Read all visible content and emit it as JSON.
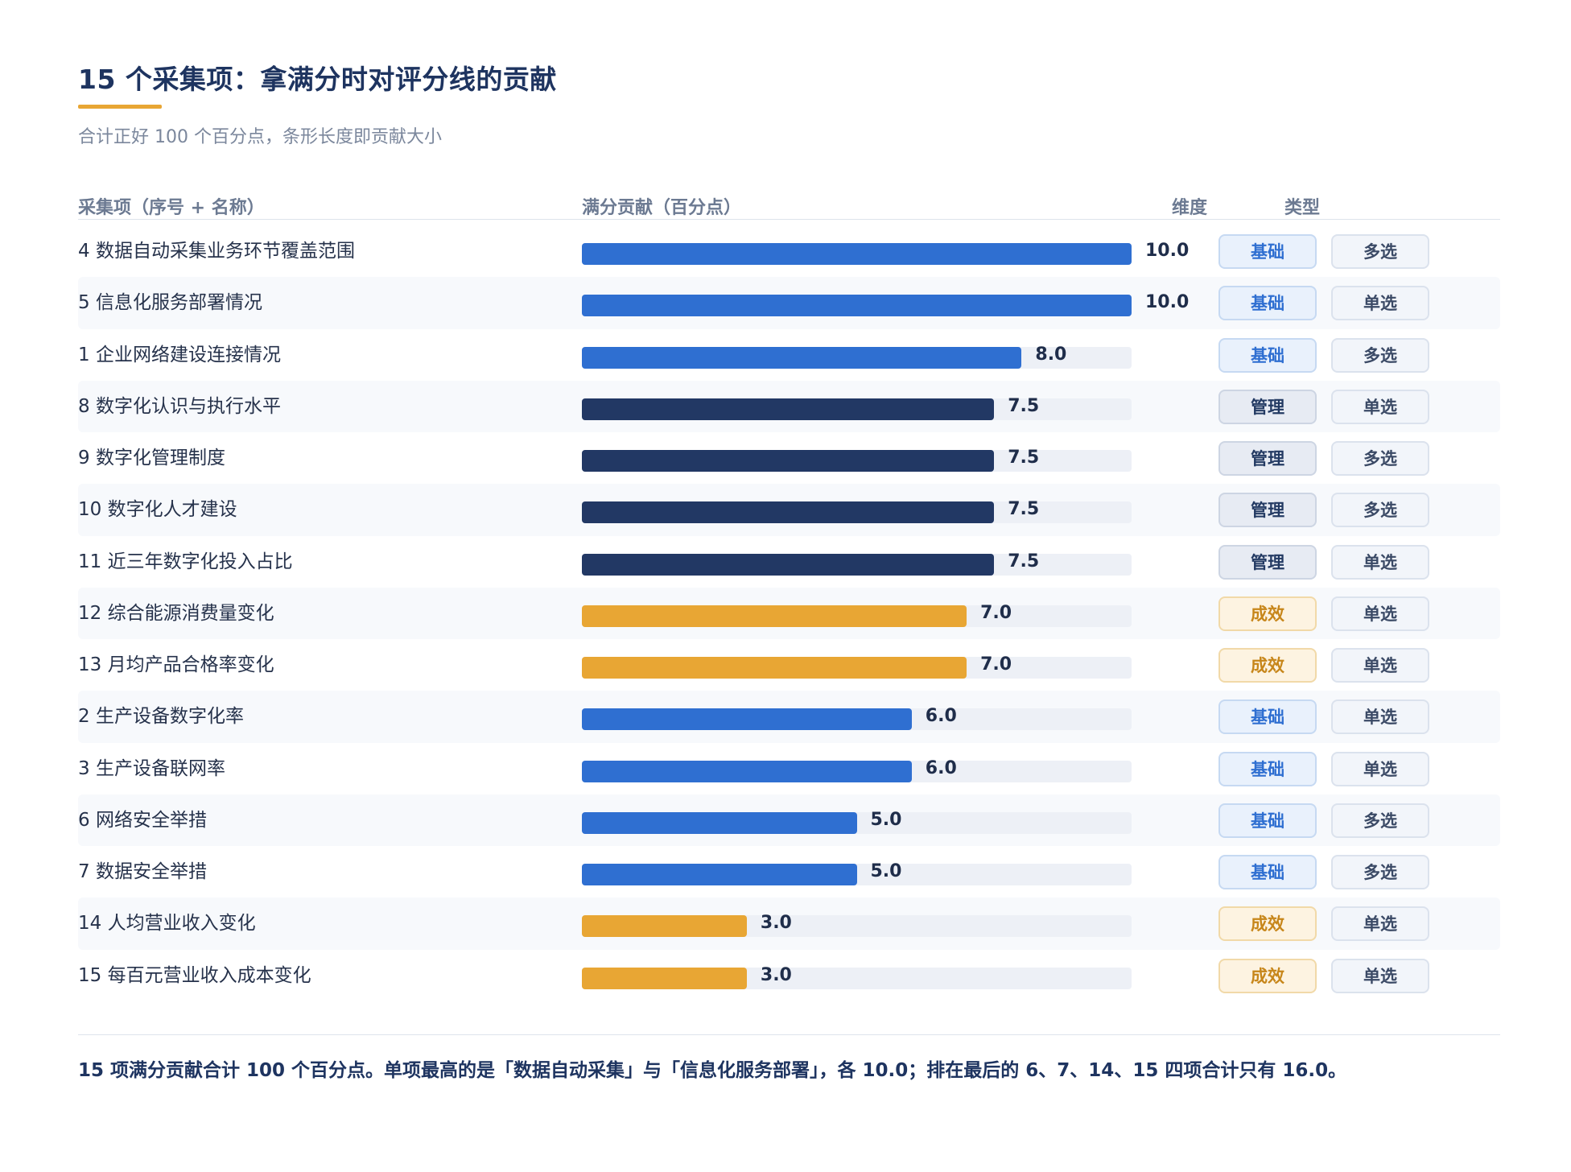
{
  "title": "15 个采集项：拿满分时对评分线的贡献",
  "subtitle": "合计正好 100 个百分点，条形长度即贡献大小",
  "columns": {
    "item": "采集项（序号 + 名称）",
    "contribution": "满分贡献（百分点）",
    "dimension": "维度",
    "type": "类型"
  },
  "colors": {
    "基础": "#2f6fd1",
    "管理": "#223864",
    "成效": "#e8a634",
    "track": "#edf0f6"
  },
  "chart_data": {
    "type": "bar",
    "orientation": "horizontal",
    "xlabel": "满分贡献（百分点）",
    "xlim": [
      0,
      10
    ],
    "categories": [
      "4 数据自动采集业务环节覆盖范围",
      "5 信息化服务部署情况",
      "1 企业网络建设连接情况",
      "8 数字化认识与执行水平",
      "9 数字化管理制度",
      "10 数字化人才建设",
      "11 近三年数字化投入占比",
      "12 综合能源消费量变化",
      "13 月均产品合格率变化",
      "2 生产设备数字化率",
      "3 生产设备联网率",
      "6 网络安全举措",
      "7 数据安全举措",
      "14 人均营业收入变化",
      "15 每百元营业收入成本变化"
    ],
    "values": [
      10.0,
      10.0,
      8.0,
      7.5,
      7.5,
      7.5,
      7.5,
      7.0,
      7.0,
      6.0,
      6.0,
      5.0,
      5.0,
      3.0,
      3.0
    ],
    "value_labels": [
      "10.0",
      "10.0",
      "8.0",
      "7.5",
      "7.5",
      "7.5",
      "7.5",
      "7.0",
      "7.0",
      "6.0",
      "6.0",
      "5.0",
      "5.0",
      "3.0",
      "3.0"
    ],
    "dimension": [
      "基础",
      "基础",
      "基础",
      "管理",
      "管理",
      "管理",
      "管理",
      "成效",
      "成效",
      "基础",
      "基础",
      "基础",
      "基础",
      "成效",
      "成效"
    ],
    "item_type": [
      "多选",
      "单选",
      "多选",
      "单选",
      "多选",
      "多选",
      "单选",
      "单选",
      "单选",
      "单选",
      "单选",
      "多选",
      "多选",
      "单选",
      "单选"
    ]
  },
  "note": "15 项满分贡献合计 100 个百分点。单项最高的是「数据自动采集」与「信息化服务部署」，各 10.0；排在最后的 6、7、14、15 四项合计只有 16.0。"
}
